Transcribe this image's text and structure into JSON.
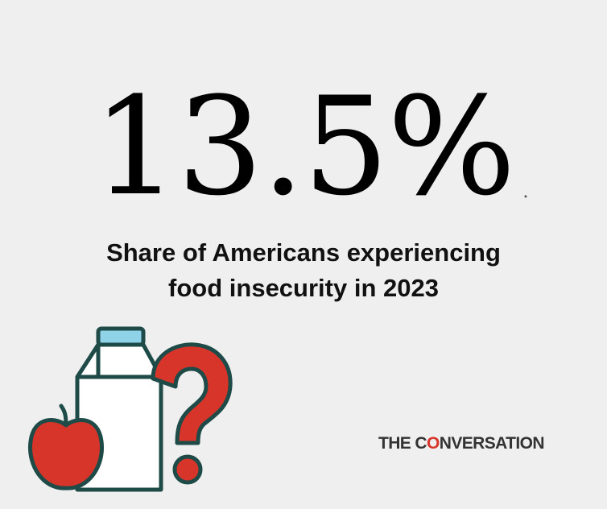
{
  "headline": {
    "statistic": "13.5%",
    "footnote_marker": "*"
  },
  "caption": {
    "line1": "Share of Americans experiencing",
    "line2": "food insecurity in 2023"
  },
  "illustration": {
    "icons": [
      "milk-carton-icon",
      "apple-icon",
      "question-mark-icon"
    ],
    "colors": {
      "outline": "#1e4a47",
      "carton_body": "#ffffff",
      "carton_cap": "#8fd3e8",
      "apple": "#d8352a",
      "question_mark": "#d8352a"
    }
  },
  "logo": {
    "prefix": "THE C",
    "o_letter": "O",
    "suffix": "NVERSATION",
    "accent_color": "#d8352a"
  }
}
